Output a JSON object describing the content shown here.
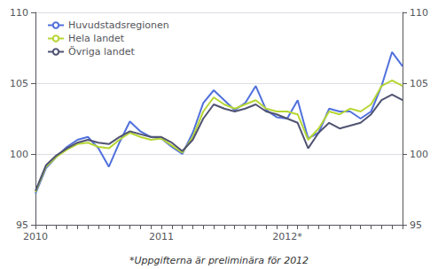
{
  "chart_data": {
    "type": "line",
    "categories": [
      "2010",
      null,
      null,
      null,
      null,
      null,
      null,
      null,
      null,
      null,
      null,
      null,
      "2011",
      null,
      null,
      null,
      null,
      null,
      null,
      null,
      null,
      null,
      null,
      null,
      "2012*",
      null,
      null,
      null,
      null,
      null,
      null,
      null,
      null,
      null,
      null,
      null
    ],
    "series": [
      {
        "name": "Huvudstadsregionen",
        "values": [
          97.2,
          99.0,
          99.8,
          100.5,
          101.0,
          101.2,
          100.4,
          99.1,
          100.8,
          102.3,
          101.6,
          101.2,
          101.1,
          100.5,
          100.0,
          101.5,
          103.6,
          104.5,
          103.8,
          103.1,
          103.6,
          104.8,
          103.1,
          102.6,
          102.5,
          103.8,
          101.1,
          101.5,
          103.2,
          103.0,
          103.0,
          102.5,
          103.0,
          104.8,
          107.2,
          106.2
        ]
      },
      {
        "name": "Hela landet",
        "values": [
          97.3,
          99.1,
          99.8,
          100.3,
          100.7,
          100.8,
          100.5,
          100.4,
          101.0,
          101.5,
          101.2,
          101.0,
          101.1,
          100.6,
          100.1,
          101.2,
          103.0,
          104.0,
          103.5,
          103.2,
          103.5,
          103.8,
          103.2,
          103.0,
          103.0,
          102.8,
          101.0,
          101.8,
          103.0,
          102.8,
          103.2,
          103.0,
          103.5,
          104.8,
          105.2,
          104.8
        ]
      },
      {
        "name": "Övriga landet",
        "values": [
          97.4,
          99.2,
          99.9,
          100.4,
          100.8,
          101.0,
          100.8,
          100.7,
          101.2,
          101.6,
          101.4,
          101.2,
          101.2,
          100.8,
          100.2,
          101.0,
          102.5,
          103.5,
          103.2,
          103.0,
          103.2,
          103.5,
          103.0,
          102.8,
          102.5,
          102.2,
          100.4,
          101.5,
          102.2,
          101.8,
          102.0,
          102.2,
          102.8,
          103.8,
          104.2,
          103.8
        ]
      }
    ],
    "ylim": [
      95,
      110
    ],
    "yticks": [
      95,
      100,
      105,
      110
    ],
    "y2lim": [
      95,
      110
    ],
    "y2ticks": [
      95,
      100,
      105,
      110
    ],
    "grid": true,
    "legend": "upper left",
    "annotations": [
      "*Uppgifterna är preliminära för 2012"
    ]
  }
}
